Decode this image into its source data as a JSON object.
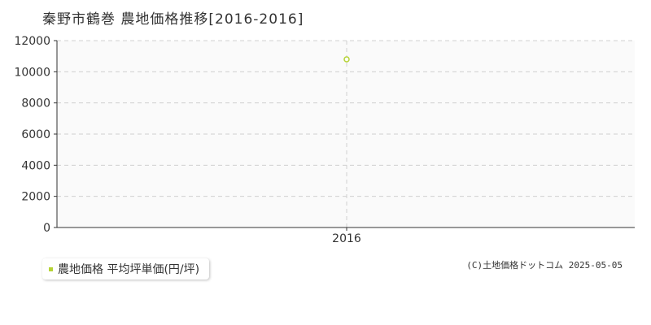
{
  "chart_data": {
    "type": "scatter",
    "title": "秦野市鶴巻 農地価格推移[2016-2016]",
    "x": [
      "2016"
    ],
    "series": [
      {
        "name": "農地価格 平均坪単価(円/坪)",
        "values": [
          10800
        ]
      }
    ],
    "ylim": [
      0,
      12000
    ],
    "yticks": [
      0,
      2000,
      4000,
      6000,
      8000,
      10000,
      12000
    ],
    "grid": true,
    "legend": "bottom-left"
  },
  "colors": {
    "series": "#b5d334",
    "grid": "#d0d0d0",
    "axis": "#333333",
    "plot_bg": "#fafafa"
  },
  "copyright": "(C)土地価格ドットコム 2025-05-05"
}
